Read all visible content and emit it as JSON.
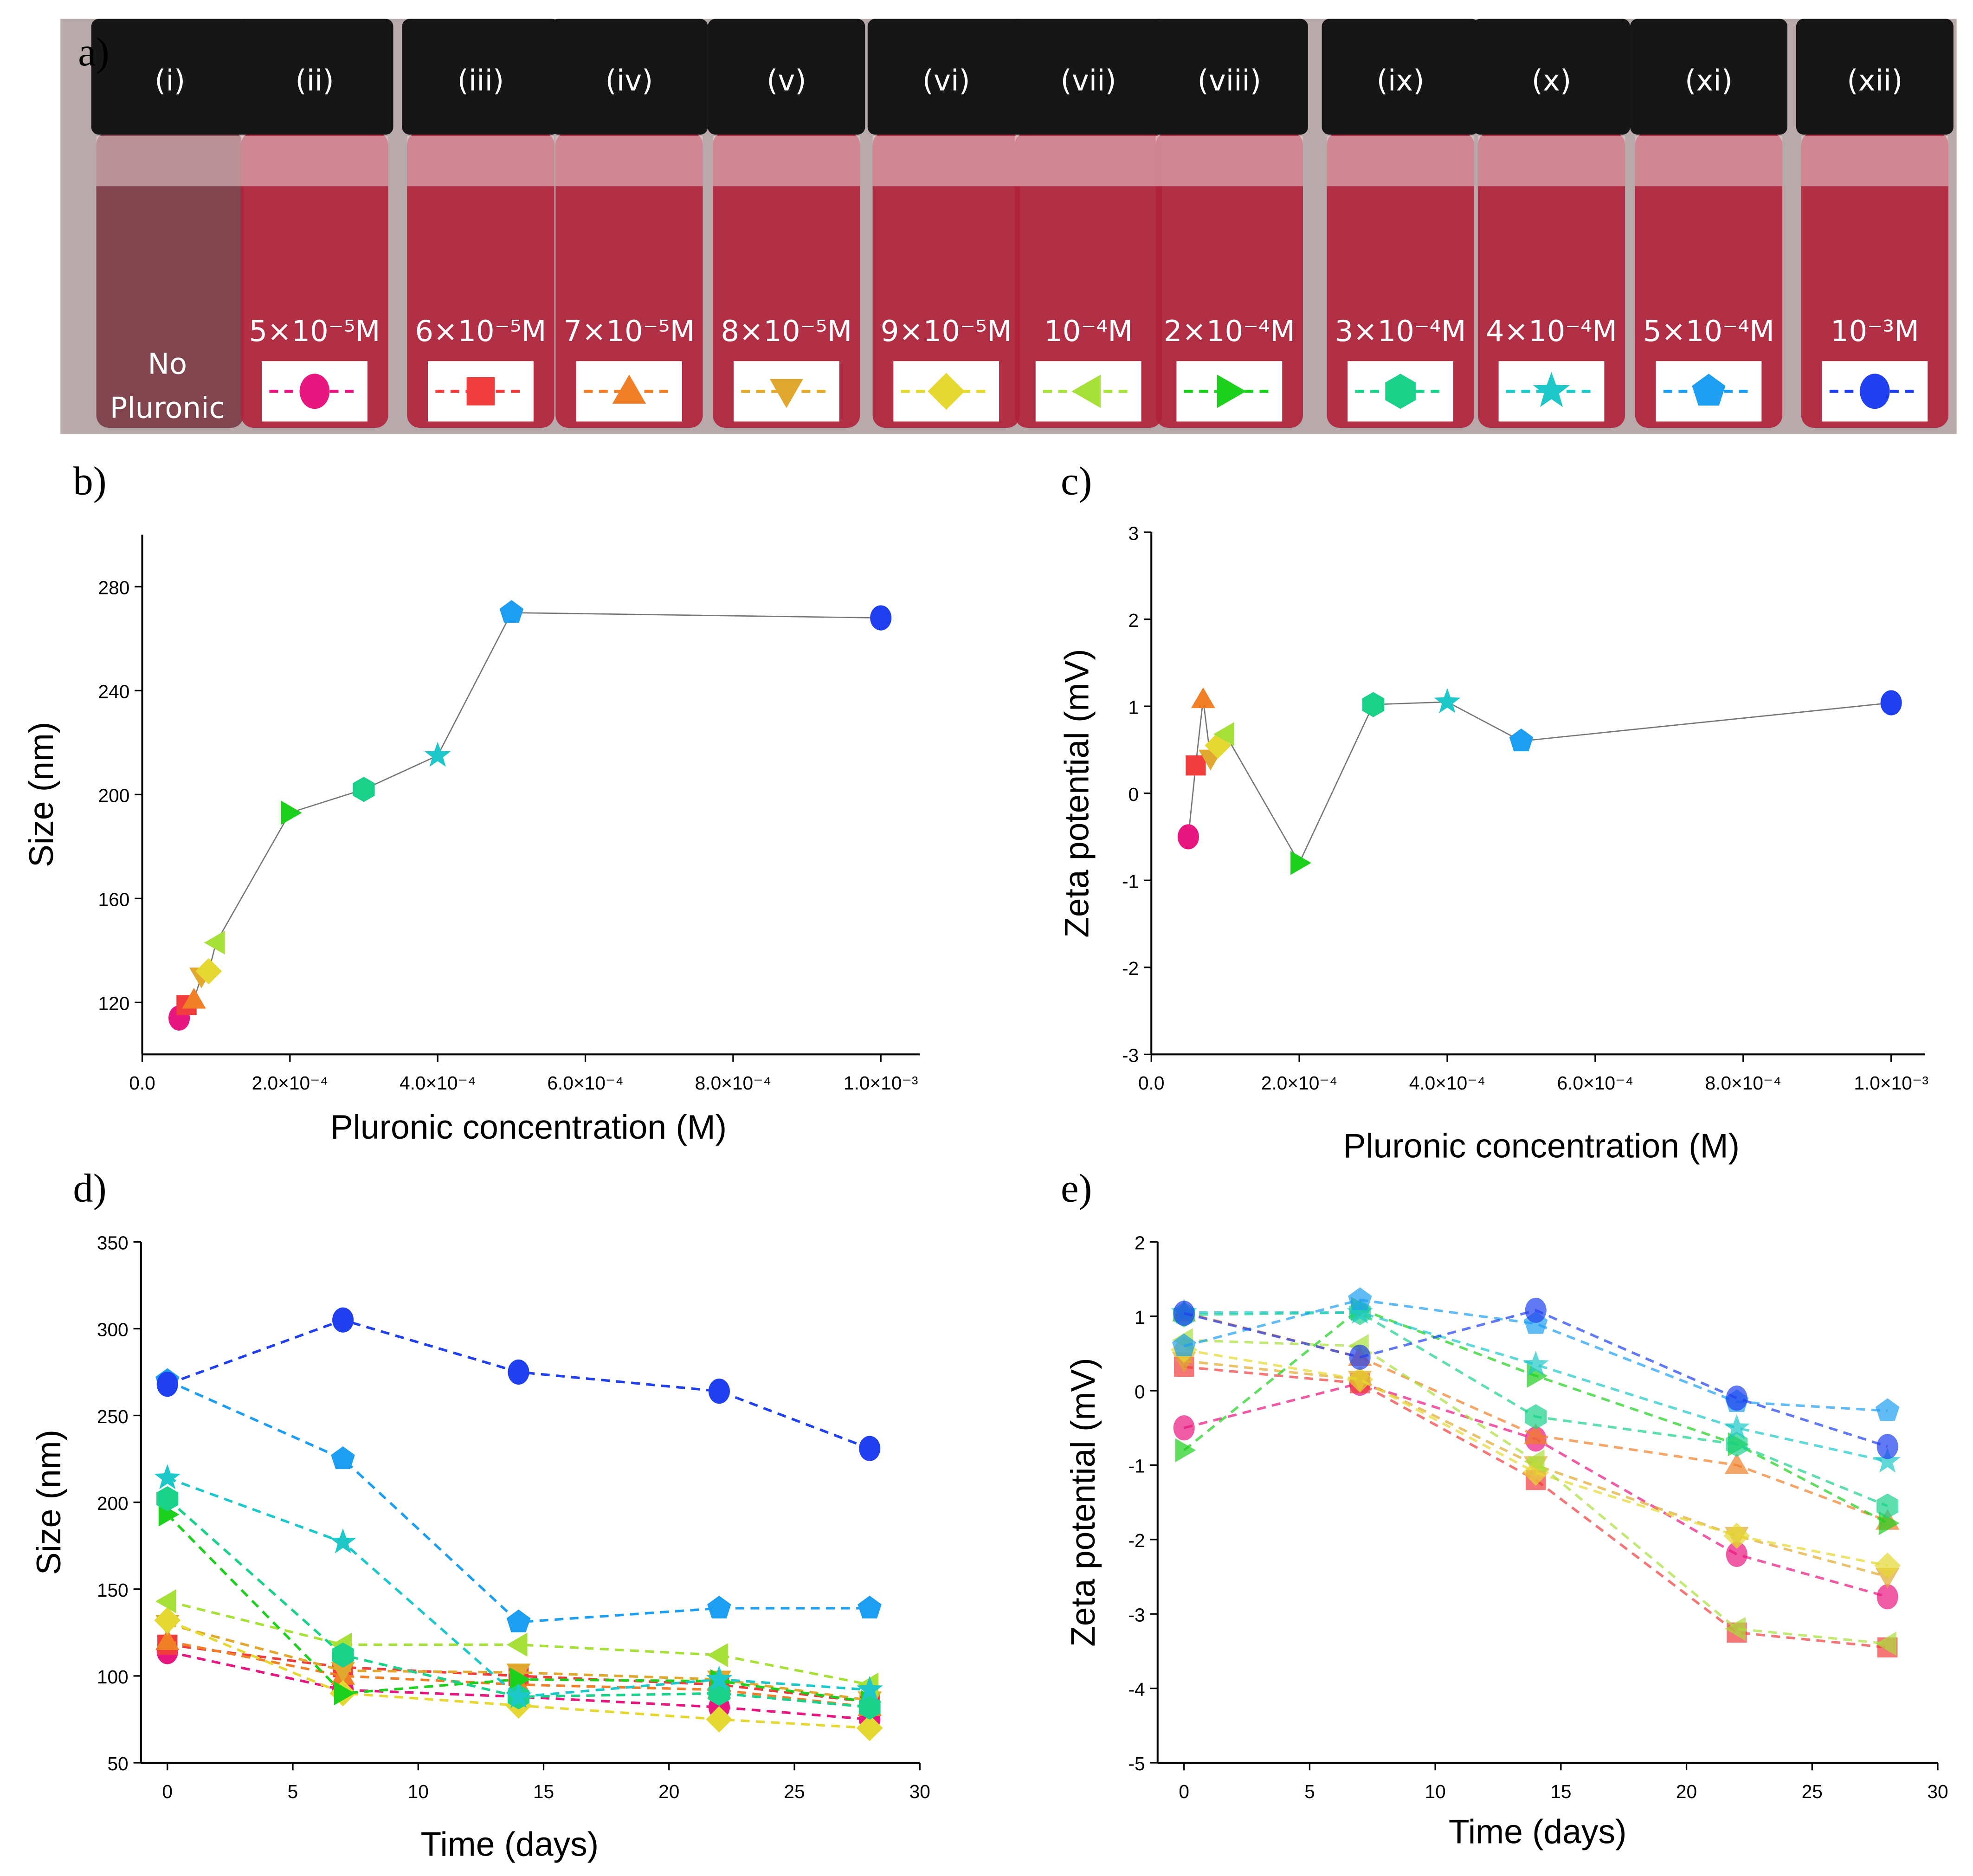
{
  "panel_a": {
    "label": "a)",
    "no_pluronic": [
      "No",
      "Pluronic"
    ],
    "vials": [
      {
        "roman": "(i)",
        "conc": "",
        "marker": "none",
        "color": ""
      },
      {
        "roman": "(ii)",
        "conc": "5×10⁻⁵M",
        "marker": "circle",
        "color": "#e8177f"
      },
      {
        "roman": "(iii)",
        "conc": "6×10⁻⁵M",
        "marker": "square",
        "color": "#f03c3c"
      },
      {
        "roman": "(iv)",
        "conc": "7×10⁻⁵M",
        "marker": "triangle-up",
        "color": "#f07f28"
      },
      {
        "roman": "(v)",
        "conc": "8×10⁻⁵M",
        "marker": "triangle-down",
        "color": "#e0a82e"
      },
      {
        "roman": "(vi)",
        "conc": "9×10⁻⁵M",
        "marker": "diamond",
        "color": "#e6d832"
      },
      {
        "roman": "(vii)",
        "conc": "10⁻⁴M",
        "marker": "triangle-left",
        "color": "#a8e03a"
      },
      {
        "roman": "(viii)",
        "conc": "2×10⁻⁴M",
        "marker": "triangle-right",
        "color": "#1ed01e"
      },
      {
        "roman": "(ix)",
        "conc": "3×10⁻⁴M",
        "marker": "hexagon",
        "color": "#1ad18a"
      },
      {
        "roman": "(x)",
        "conc": "4×10⁻⁴M",
        "marker": "star",
        "color": "#1ec8c8"
      },
      {
        "roman": "(xi)",
        "conc": "5×10⁻⁴M",
        "marker": "pentagon",
        "color": "#1e9ef0"
      },
      {
        "roman": "(xii)",
        "conc": "10⁻³M",
        "marker": "circle",
        "color": "#2040f0"
      }
    ]
  },
  "chart_data": [
    {
      "panel": "b)",
      "type": "scatter",
      "xlabel": "Pluronic concentration (M)",
      "ylabel": "Size (nm)",
      "xlim": [
        0,
        0.00105
      ],
      "ylim": [
        100,
        300
      ],
      "xticks": [
        0,
        0.0002,
        0.0004,
        0.0006,
        0.0008,
        0.001
      ],
      "xtick_labels": [
        "0.0",
        "2.0×10⁻⁴",
        "4.0×10⁻⁴",
        "6.0×10⁻⁴",
        "8.0×10⁻⁴",
        "1.0×10⁻³"
      ],
      "yticks": [
        120,
        160,
        200,
        240,
        280
      ],
      "x": [
        5e-05,
        6e-05,
        7e-05,
        8e-05,
        9e-05,
        0.0001,
        0.0002,
        0.0003,
        0.0004,
        0.0005,
        0.001
      ],
      "y": [
        114,
        119,
        121,
        130,
        132,
        143,
        193,
        202,
        215,
        270,
        268
      ],
      "connector_color": "#777777"
    },
    {
      "panel": "c)",
      "type": "scatter",
      "xlabel": "Pluronic concentration (M)",
      "ylabel": "Zeta potential (mV)",
      "xlim": [
        0,
        0.00105
      ],
      "ylim": [
        -3,
        3
      ],
      "xticks": [
        0,
        0.0002,
        0.0004,
        0.0006,
        0.0008,
        0.001
      ],
      "xtick_labels": [
        "0.0",
        "2.0×10⁻⁴",
        "4.0×10⁻⁴",
        "6.0×10⁻⁴",
        "8.0×10⁻⁴",
        "1.0×10⁻³"
      ],
      "yticks": [
        -3,
        -2,
        -1,
        0,
        1,
        2,
        3
      ],
      "x": [
        5e-05,
        6e-05,
        7e-05,
        8e-05,
        9e-05,
        0.0001,
        0.0002,
        0.0003,
        0.0004,
        0.0005,
        0.001
      ],
      "y": [
        -0.5,
        0.32,
        1.08,
        0.4,
        0.55,
        0.68,
        -0.8,
        1.02,
        1.05,
        0.6,
        1.04
      ],
      "connector_color": "#777777"
    },
    {
      "panel": "d)",
      "type": "line",
      "xlabel": "Time (days)",
      "ylabel": "Size (nm)",
      "xlim": [
        -1,
        30
      ],
      "ylim": [
        50,
        350
      ],
      "xticks": [
        0,
        5,
        10,
        15,
        20,
        25,
        30
      ],
      "yticks": [
        50,
        100,
        150,
        200,
        250,
        300,
        350
      ],
      "x": [
        0,
        7,
        14,
        22,
        28
      ],
      "series": [
        {
          "values": [
            114,
            92,
            88,
            82,
            75
          ]
        },
        {
          "values": [
            118,
            105,
            100,
            95,
            85
          ]
        },
        {
          "values": [
            120,
            100,
            95,
            92,
            82
          ]
        },
        {
          "values": [
            130,
            103,
            102,
            98,
            86
          ]
        },
        {
          "values": [
            132,
            90,
            83,
            75,
            70
          ]
        },
        {
          "values": [
            143,
            118,
            118,
            112,
            95
          ]
        },
        {
          "values": [
            193,
            90,
            98,
            97,
            85
          ]
        },
        {
          "values": [
            202,
            112,
            88,
            90,
            82
          ]
        },
        {
          "values": [
            214,
            177,
            88,
            98,
            92
          ]
        },
        {
          "values": [
            270,
            225,
            131,
            139,
            139
          ]
        },
        {
          "values": [
            268,
            305,
            275,
            264,
            231
          ]
        }
      ]
    },
    {
      "panel": "e)",
      "type": "line",
      "xlabel": "Time (days)",
      "ylabel": "Zeta potential (mV)",
      "xlim": [
        -1,
        30
      ],
      "ylim": [
        -5,
        2
      ],
      "xticks": [
        0,
        5,
        10,
        15,
        20,
        25,
        30
      ],
      "yticks": [
        -5,
        -4,
        -3,
        -2,
        -1,
        0,
        1,
        2
      ],
      "x": [
        0,
        7,
        14,
        22,
        28
      ],
      "series": [
        {
          "values": [
            -0.5,
            0.1,
            -0.65,
            -2.2,
            -2.77
          ]
        },
        {
          "values": [
            0.32,
            0.1,
            -1.2,
            -3.25,
            -3.45
          ]
        },
        {
          "values": [
            1.05,
            0.45,
            -0.6,
            -1.0,
            -1.75
          ]
        },
        {
          "values": [
            0.4,
            0.15,
            -1.0,
            -1.95,
            -2.5
          ]
        },
        {
          "values": [
            0.55,
            0.15,
            -1.1,
            -1.95,
            -2.35
          ]
        },
        {
          "values": [
            0.68,
            0.6,
            -0.95,
            -3.2,
            -3.4
          ]
        },
        {
          "values": [
            -0.8,
            1.1,
            0.2,
            -0.72,
            -1.78
          ]
        },
        {
          "values": [
            1.02,
            1.05,
            -0.35,
            -0.72,
            -1.55
          ]
        },
        {
          "values": [
            1.05,
            1.05,
            0.35,
            -0.5,
            -0.95
          ]
        },
        {
          "values": [
            0.6,
            1.22,
            0.9,
            -0.15,
            -0.27
          ]
        },
        {
          "values": [
            1.04,
            0.45,
            1.08,
            -0.1,
            -0.75
          ]
        }
      ]
    }
  ]
}
